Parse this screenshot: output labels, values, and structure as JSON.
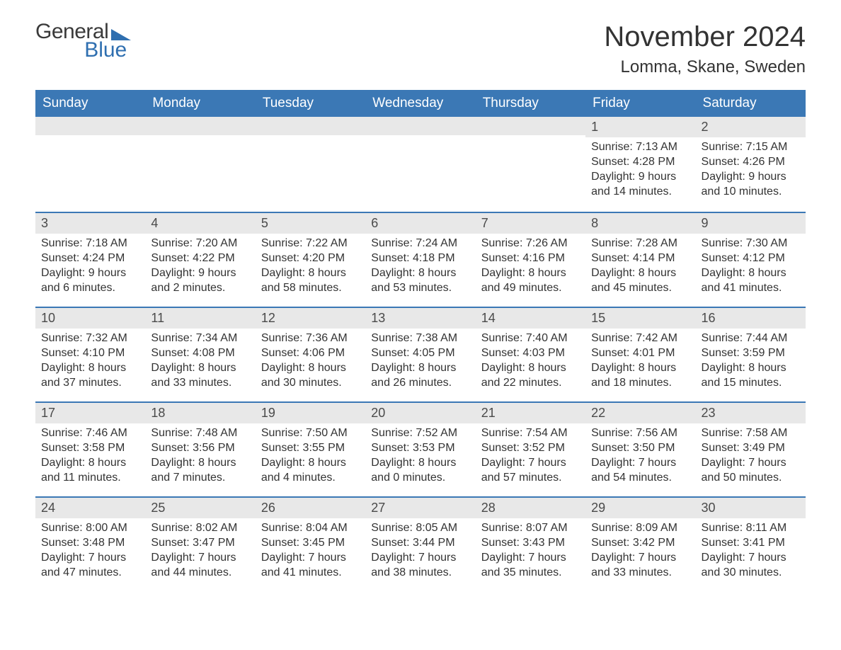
{
  "logo": {
    "text1": "General",
    "text2": "Blue"
  },
  "title": {
    "month": "November 2024",
    "location": "Lomma, Skane, Sweden"
  },
  "weekdays": [
    "Sunday",
    "Monday",
    "Tuesday",
    "Wednesday",
    "Thursday",
    "Friday",
    "Saturday"
  ],
  "colors": {
    "header_bg": "#3b78b5",
    "header_text": "#ffffff",
    "row_border": "#3b78b5",
    "daynum_bg": "#e8e8e8",
    "accent": "#2f6fb0",
    "text": "#333333"
  },
  "weeks": [
    [
      {
        "day": "",
        "sunrise": "",
        "sunset": "",
        "daylight": ""
      },
      {
        "day": "",
        "sunrise": "",
        "sunset": "",
        "daylight": ""
      },
      {
        "day": "",
        "sunrise": "",
        "sunset": "",
        "daylight": ""
      },
      {
        "day": "",
        "sunrise": "",
        "sunset": "",
        "daylight": ""
      },
      {
        "day": "",
        "sunrise": "",
        "sunset": "",
        "daylight": ""
      },
      {
        "day": "1",
        "sunrise": "Sunrise: 7:13 AM",
        "sunset": "Sunset: 4:28 PM",
        "daylight": "Daylight: 9 hours and 14 minutes."
      },
      {
        "day": "2",
        "sunrise": "Sunrise: 7:15 AM",
        "sunset": "Sunset: 4:26 PM",
        "daylight": "Daylight: 9 hours and 10 minutes."
      }
    ],
    [
      {
        "day": "3",
        "sunrise": "Sunrise: 7:18 AM",
        "sunset": "Sunset: 4:24 PM",
        "daylight": "Daylight: 9 hours and 6 minutes."
      },
      {
        "day": "4",
        "sunrise": "Sunrise: 7:20 AM",
        "sunset": "Sunset: 4:22 PM",
        "daylight": "Daylight: 9 hours and 2 minutes."
      },
      {
        "day": "5",
        "sunrise": "Sunrise: 7:22 AM",
        "sunset": "Sunset: 4:20 PM",
        "daylight": "Daylight: 8 hours and 58 minutes."
      },
      {
        "day": "6",
        "sunrise": "Sunrise: 7:24 AM",
        "sunset": "Sunset: 4:18 PM",
        "daylight": "Daylight: 8 hours and 53 minutes."
      },
      {
        "day": "7",
        "sunrise": "Sunrise: 7:26 AM",
        "sunset": "Sunset: 4:16 PM",
        "daylight": "Daylight: 8 hours and 49 minutes."
      },
      {
        "day": "8",
        "sunrise": "Sunrise: 7:28 AM",
        "sunset": "Sunset: 4:14 PM",
        "daylight": "Daylight: 8 hours and 45 minutes."
      },
      {
        "day": "9",
        "sunrise": "Sunrise: 7:30 AM",
        "sunset": "Sunset: 4:12 PM",
        "daylight": "Daylight: 8 hours and 41 minutes."
      }
    ],
    [
      {
        "day": "10",
        "sunrise": "Sunrise: 7:32 AM",
        "sunset": "Sunset: 4:10 PM",
        "daylight": "Daylight: 8 hours and 37 minutes."
      },
      {
        "day": "11",
        "sunrise": "Sunrise: 7:34 AM",
        "sunset": "Sunset: 4:08 PM",
        "daylight": "Daylight: 8 hours and 33 minutes."
      },
      {
        "day": "12",
        "sunrise": "Sunrise: 7:36 AM",
        "sunset": "Sunset: 4:06 PM",
        "daylight": "Daylight: 8 hours and 30 minutes."
      },
      {
        "day": "13",
        "sunrise": "Sunrise: 7:38 AM",
        "sunset": "Sunset: 4:05 PM",
        "daylight": "Daylight: 8 hours and 26 minutes."
      },
      {
        "day": "14",
        "sunrise": "Sunrise: 7:40 AM",
        "sunset": "Sunset: 4:03 PM",
        "daylight": "Daylight: 8 hours and 22 minutes."
      },
      {
        "day": "15",
        "sunrise": "Sunrise: 7:42 AM",
        "sunset": "Sunset: 4:01 PM",
        "daylight": "Daylight: 8 hours and 18 minutes."
      },
      {
        "day": "16",
        "sunrise": "Sunrise: 7:44 AM",
        "sunset": "Sunset: 3:59 PM",
        "daylight": "Daylight: 8 hours and 15 minutes."
      }
    ],
    [
      {
        "day": "17",
        "sunrise": "Sunrise: 7:46 AM",
        "sunset": "Sunset: 3:58 PM",
        "daylight": "Daylight: 8 hours and 11 minutes."
      },
      {
        "day": "18",
        "sunrise": "Sunrise: 7:48 AM",
        "sunset": "Sunset: 3:56 PM",
        "daylight": "Daylight: 8 hours and 7 minutes."
      },
      {
        "day": "19",
        "sunrise": "Sunrise: 7:50 AM",
        "sunset": "Sunset: 3:55 PM",
        "daylight": "Daylight: 8 hours and 4 minutes."
      },
      {
        "day": "20",
        "sunrise": "Sunrise: 7:52 AM",
        "sunset": "Sunset: 3:53 PM",
        "daylight": "Daylight: 8 hours and 0 minutes."
      },
      {
        "day": "21",
        "sunrise": "Sunrise: 7:54 AM",
        "sunset": "Sunset: 3:52 PM",
        "daylight": "Daylight: 7 hours and 57 minutes."
      },
      {
        "day": "22",
        "sunrise": "Sunrise: 7:56 AM",
        "sunset": "Sunset: 3:50 PM",
        "daylight": "Daylight: 7 hours and 54 minutes."
      },
      {
        "day": "23",
        "sunrise": "Sunrise: 7:58 AM",
        "sunset": "Sunset: 3:49 PM",
        "daylight": "Daylight: 7 hours and 50 minutes."
      }
    ],
    [
      {
        "day": "24",
        "sunrise": "Sunrise: 8:00 AM",
        "sunset": "Sunset: 3:48 PM",
        "daylight": "Daylight: 7 hours and 47 minutes."
      },
      {
        "day": "25",
        "sunrise": "Sunrise: 8:02 AM",
        "sunset": "Sunset: 3:47 PM",
        "daylight": "Daylight: 7 hours and 44 minutes."
      },
      {
        "day": "26",
        "sunrise": "Sunrise: 8:04 AM",
        "sunset": "Sunset: 3:45 PM",
        "daylight": "Daylight: 7 hours and 41 minutes."
      },
      {
        "day": "27",
        "sunrise": "Sunrise: 8:05 AM",
        "sunset": "Sunset: 3:44 PM",
        "daylight": "Daylight: 7 hours and 38 minutes."
      },
      {
        "day": "28",
        "sunrise": "Sunrise: 8:07 AM",
        "sunset": "Sunset: 3:43 PM",
        "daylight": "Daylight: 7 hours and 35 minutes."
      },
      {
        "day": "29",
        "sunrise": "Sunrise: 8:09 AM",
        "sunset": "Sunset: 3:42 PM",
        "daylight": "Daylight: 7 hours and 33 minutes."
      },
      {
        "day": "30",
        "sunrise": "Sunrise: 8:11 AM",
        "sunset": "Sunset: 3:41 PM",
        "daylight": "Daylight: 7 hours and 30 minutes."
      }
    ]
  ]
}
